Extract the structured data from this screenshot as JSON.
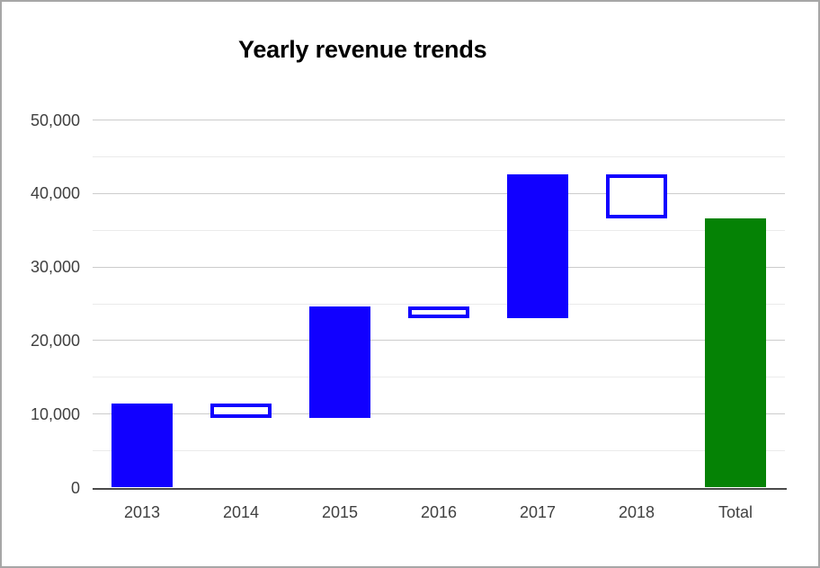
{
  "chart_data": {
    "type": "waterfall",
    "title": "Yearly revenue trends",
    "categories": [
      "2013",
      "2014",
      "2015",
      "2016",
      "2017",
      "2018",
      "Total"
    ],
    "bars": [
      {
        "label": "2013",
        "start": 0,
        "end": 11400,
        "delta": 11400,
        "kind": "rise"
      },
      {
        "label": "2014",
        "start": 11400,
        "end": 9500,
        "delta": -1900,
        "kind": "fall"
      },
      {
        "label": "2015",
        "start": 9500,
        "end": 24650,
        "delta": 15150,
        "kind": "rise"
      },
      {
        "label": "2016",
        "start": 24650,
        "end": 23100,
        "delta": -1550,
        "kind": "fall"
      },
      {
        "label": "2017",
        "start": 23100,
        "end": 42600,
        "delta": 19500,
        "kind": "rise"
      },
      {
        "label": "2018",
        "start": 42600,
        "end": 36600,
        "delta": -6000,
        "kind": "fall"
      },
      {
        "label": "Total",
        "start": 0,
        "end": 36600,
        "delta": 36600,
        "kind": "total"
      }
    ],
    "y_axis": {
      "min": 0,
      "max": 50000,
      "major_step": 10000,
      "minor_step": 5000,
      "tick_labels": [
        "0",
        "10,000",
        "20,000",
        "30,000",
        "40,000",
        "50,000"
      ]
    },
    "legend": "none",
    "grid": {
      "major": true,
      "minor": true
    },
    "colors": {
      "rise_fill": "#1100ff",
      "fall_fill": "#ffffff",
      "fall_border": "#1100ff",
      "total_fill": "#058205",
      "major_gridline": "#cccccc",
      "minor_gridline": "#ebebeb",
      "axis_line": "#4a4a4a",
      "tick_text": "#404040",
      "title_text": "#000000",
      "frame_border": "#a6a6a6"
    }
  }
}
